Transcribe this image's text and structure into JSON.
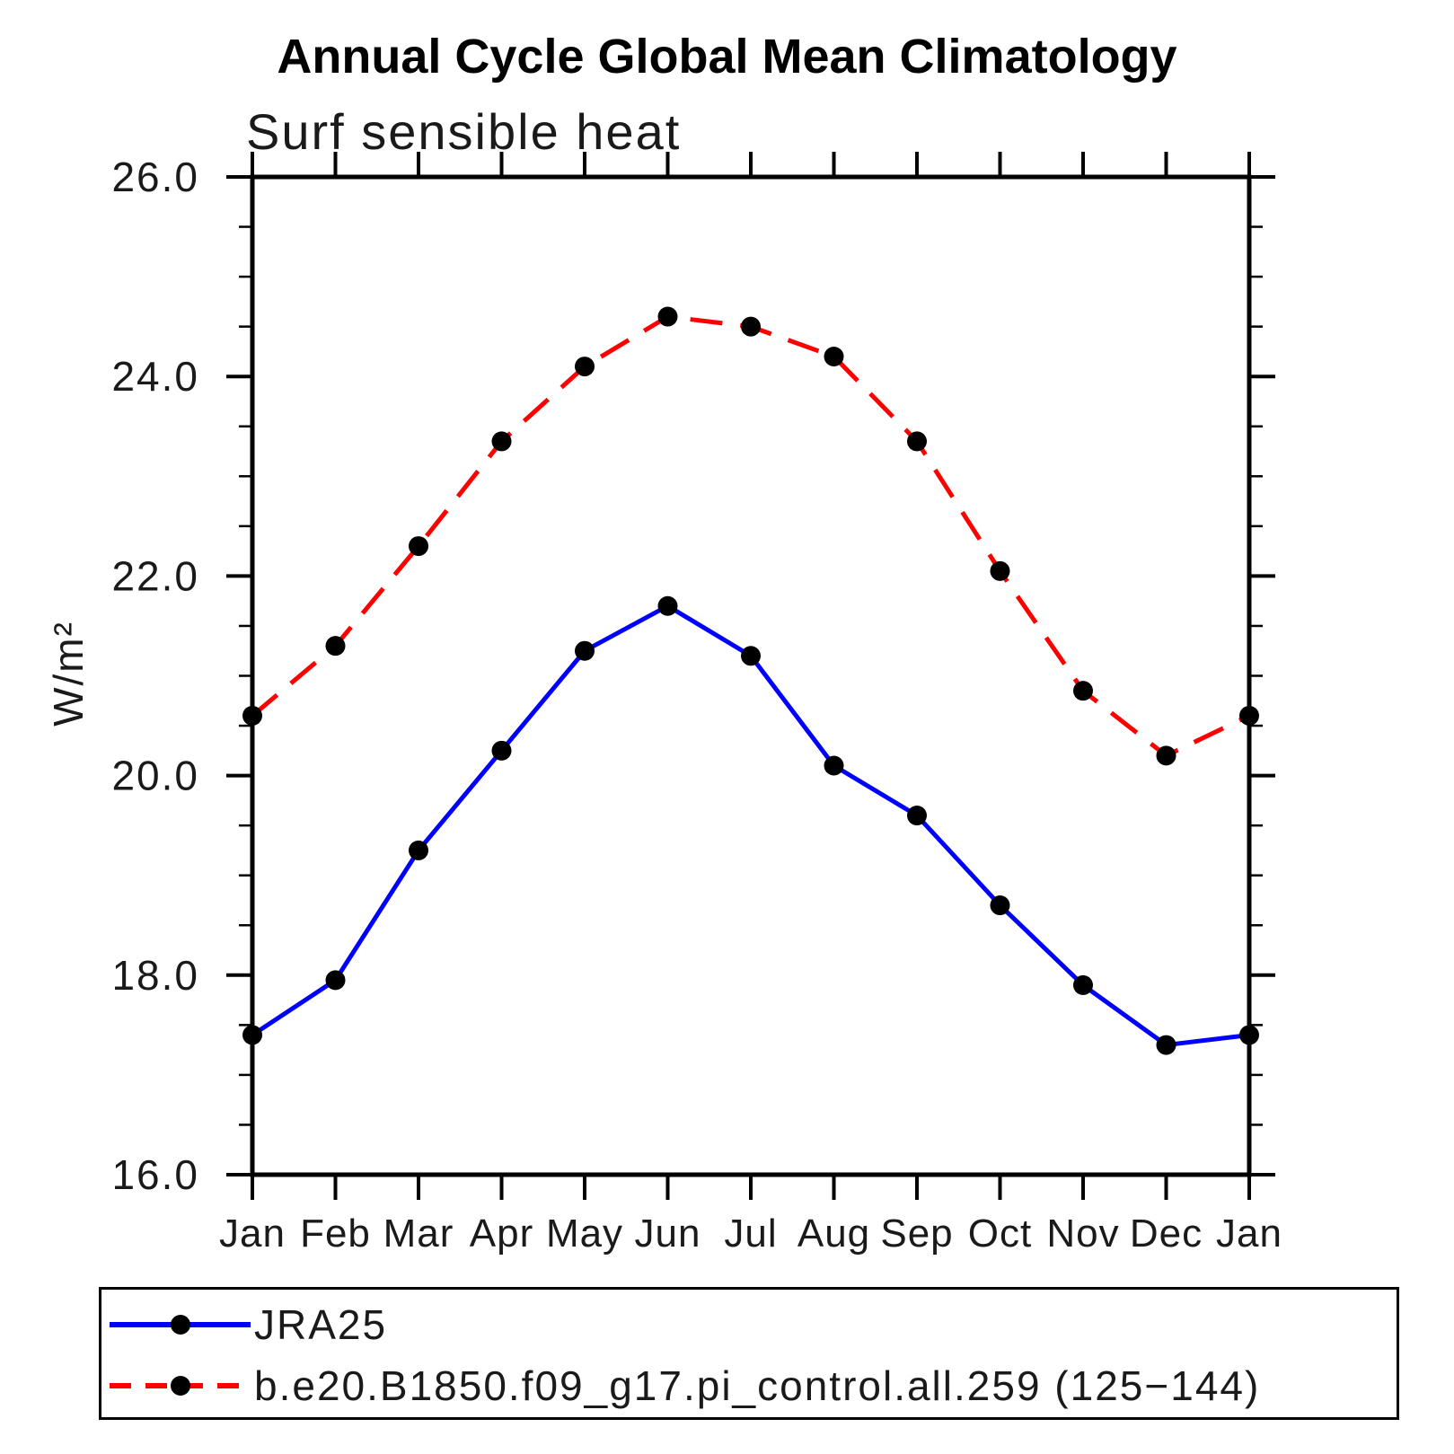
{
  "chart_data": {
    "type": "line",
    "title": "Annual Cycle Global Mean Climatology",
    "subtitle": "Surf sensible heat",
    "ylabel": "W/m²",
    "xlabel": "",
    "categories": [
      "Jan",
      "Feb",
      "Mar",
      "Apr",
      "May",
      "Jun",
      "Jul",
      "Aug",
      "Sep",
      "Oct",
      "Nov",
      "Dec",
      "Jan"
    ],
    "ylim": [
      16.0,
      26.0
    ],
    "ytick_major_interval": 2.0,
    "ytick_minor_interval": 0.5,
    "ytick_labels": [
      "16.0",
      "18.0",
      "20.0",
      "22.0",
      "24.0",
      "26.0"
    ],
    "grid": false,
    "legend_position": "bottom",
    "marker": "filled-circle",
    "marker_color": "#000000",
    "series": [
      {
        "name": "JRA25",
        "color": "#0000ff",
        "style": "solid",
        "values": [
          17.4,
          17.95,
          19.25,
          20.25,
          21.25,
          21.7,
          21.2,
          20.1,
          19.6,
          18.7,
          17.9,
          17.3,
          17.4
        ]
      },
      {
        "name": "b.e20.B1850.f09_g17.pi_control.all.259 (125−144)",
        "color": "#ff0000",
        "style": "dashed",
        "values": [
          20.6,
          21.3,
          22.3,
          23.35,
          24.1,
          24.6,
          24.5,
          24.2,
          23.35,
          22.05,
          20.85,
          20.2,
          20.6
        ]
      }
    ]
  }
}
